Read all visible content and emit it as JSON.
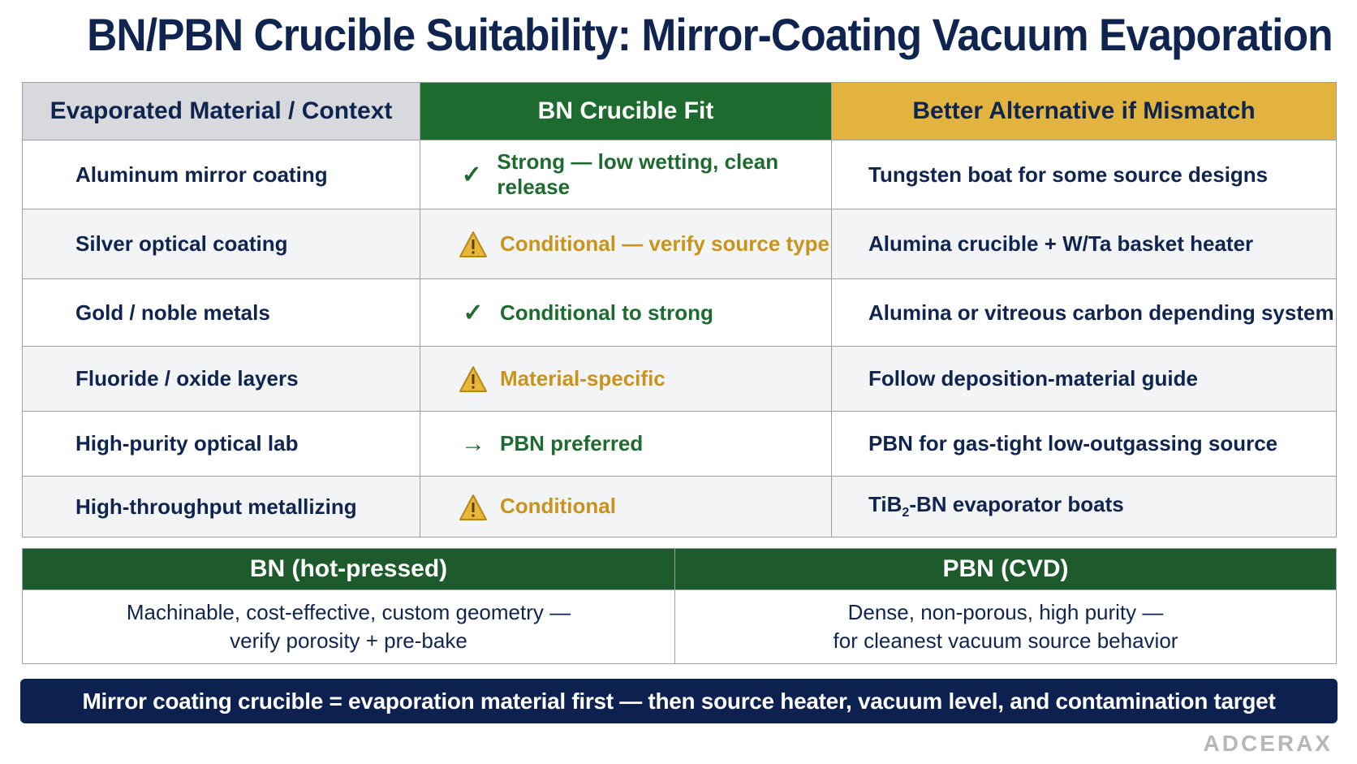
{
  "title": "BN/PBN Crucible Suitability: Mirror-Coating Vacuum Evaporation",
  "columns": [
    "Evaporated Material / Context",
    "BN Crucible Fit",
    "Better Alternative if Mismatch"
  ],
  "rows": [
    {
      "material": "Aluminum mirror coating",
      "fit_icon": "check-icon",
      "fit_status": "good",
      "fit": "Strong — low wetting, clean release",
      "alternative": "Tungsten boat for some source designs"
    },
    {
      "material": "Silver optical coating",
      "fit_icon": "warning-icon",
      "fit_status": "warn",
      "fit": "Conditional — verify source type",
      "alternative": "Alumina crucible + W/Ta basket heater"
    },
    {
      "material": "Gold / noble metals",
      "fit_icon": "check-icon",
      "fit_status": "good",
      "fit": "Conditional to strong",
      "alternative": "Alumina or vitreous carbon depending system"
    },
    {
      "material": "Fluoride / oxide layers",
      "fit_icon": "warning-icon",
      "fit_status": "warn",
      "fit": "Material-specific",
      "alternative": "Follow deposition-material guide"
    },
    {
      "material": "High-purity optical lab",
      "fit_icon": "arrow-right-icon",
      "fit_status": "good",
      "fit": "PBN preferred",
      "alternative": "PBN for gas-tight low-outgassing source"
    },
    {
      "material": "High-throughput metallizing",
      "fit_icon": "warning-icon",
      "fit_status": "warn",
      "fit": "Conditional",
      "alternative_prefix": "TiB",
      "alternative_sub": "2",
      "alternative_suffix": "-BN evaporator boats"
    }
  ],
  "comparison": {
    "bn": {
      "heading": "BN (hot-pressed)",
      "line1": "Machinable, cost-effective, custom geometry —",
      "line2": "verify porosity + pre-bake"
    },
    "pbn": {
      "heading": "PBN (CVD)",
      "line1": "Dense, non-porous, high purity —",
      "line2": "for cleanest vacuum source behavior"
    }
  },
  "banner": "Mirror coating crucible = evaporation material first — then source heater, vacuum level, and contamination target",
  "logo": "ADCERAX",
  "colors": {
    "navy": "#0f2550",
    "green": "#1d6b2f",
    "gold": "#e2b33e",
    "warn": "#c8941b"
  }
}
